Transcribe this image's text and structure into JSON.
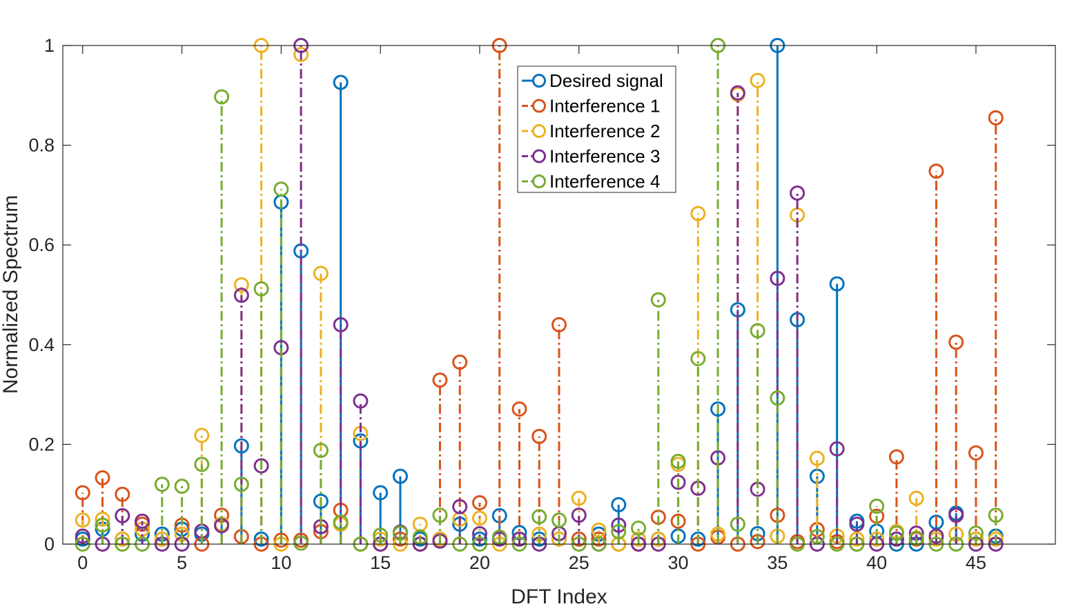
{
  "chart_data": {
    "type": "stem",
    "title": "",
    "xlabel": "DFT Index",
    "ylabel": "Normalized Spectrum",
    "xlim": [
      -1,
      49
    ],
    "ylim": [
      0,
      1
    ],
    "xticks": [
      0,
      5,
      10,
      15,
      20,
      25,
      30,
      35,
      40,
      45
    ],
    "yticks": [
      0,
      0.2,
      0.4,
      0.6,
      0.8,
      1
    ],
    "ytick_labels": [
      "0",
      "0.2",
      "0.4",
      "0.6",
      "0.8",
      "1"
    ],
    "legend_position": "top-center",
    "x": [
      0,
      1,
      2,
      3,
      4,
      5,
      6,
      7,
      8,
      9,
      10,
      11,
      12,
      13,
      14,
      15,
      16,
      17,
      18,
      19,
      20,
      21,
      22,
      23,
      24,
      25,
      26,
      27,
      28,
      29,
      30,
      31,
      32,
      33,
      34,
      35,
      36,
      37,
      38,
      39,
      40,
      41,
      42,
      43,
      44,
      45,
      46
    ],
    "series": [
      {
        "name": "Desired signal",
        "color": "#0072BD",
        "line_style": "solid",
        "values": [
          0.01,
          0.03,
          0.01,
          0.02,
          0.02,
          0.03,
          0.02,
          0.04,
          0.197,
          0.01,
          0.686,
          0.588,
          0.086,
          0.926,
          0.207,
          0.103,
          0.136,
          0.01,
          0.01,
          0.04,
          0.01,
          0.057,
          0.023,
          0.01,
          0.01,
          0.01,
          0.02,
          0.079,
          0.01,
          0.01,
          0.016,
          0.01,
          0.271,
          0.47,
          0.021,
          1.0,
          0.45,
          0.136,
          0.522,
          0.046,
          0.026,
          0.0,
          0.0,
          0.044,
          0.062,
          0.01,
          0.016
        ]
      },
      {
        "name": "Interference 1",
        "color": "#D95319",
        "line_style": "dashdot",
        "values": [
          0.103,
          0.133,
          0.1,
          0.04,
          0.01,
          0.038,
          0.0,
          0.058,
          0.015,
          0.0,
          0.008,
          0.008,
          0.025,
          0.068,
          0.0,
          0.0,
          0.01,
          0.0,
          0.329,
          0.365,
          0.083,
          1.0,
          0.271,
          0.216,
          0.44,
          0.01,
          0.01,
          0.0,
          0.0,
          0.054,
          0.046,
          0.0,
          0.014,
          0.0,
          0.005,
          0.058,
          0.005,
          0.029,
          0.005,
          0.0,
          0.056,
          0.175,
          0.01,
          0.748,
          0.405,
          0.183,
          0.855
        ]
      },
      {
        "name": "Interference 2",
        "color": "#EDB120",
        "line_style": "dashdot",
        "values": [
          0.048,
          0.05,
          0.01,
          0.03,
          0.01,
          0.02,
          0.218,
          0.04,
          0.52,
          1.0,
          0.0,
          0.982,
          0.543,
          0.04,
          0.222,
          0.01,
          0.0,
          0.04,
          0.01,
          0.05,
          0.052,
          0.0,
          0.01,
          0.02,
          0.01,
          0.092,
          0.028,
          0.0,
          0.01,
          0.01,
          0.16,
          0.663,
          0.02,
          0.902,
          0.93,
          0.016,
          0.66,
          0.172,
          0.016,
          0.01,
          0.01,
          0.025,
          0.092,
          0.01,
          0.02,
          0.01,
          0.01
        ]
      },
      {
        "name": "Interference 3",
        "color": "#7E2F8E",
        "line_style": "dashdot",
        "values": [
          0.016,
          0.0,
          0.057,
          0.046,
          0.0,
          0.0,
          0.026,
          0.037,
          0.499,
          0.157,
          0.394,
          1.0,
          0.035,
          0.44,
          0.287,
          0.0,
          0.024,
          0.0,
          0.006,
          0.075,
          0.021,
          0.01,
          0.01,
          0.0,
          0.021,
          0.058,
          0.0,
          0.038,
          0.0,
          0.0,
          0.124,
          0.112,
          0.173,
          0.905,
          0.11,
          0.533,
          0.704,
          0.0,
          0.191,
          0.04,
          0.0,
          0.01,
          0.022,
          0.016,
          0.058,
          0.0,
          0.0
        ]
      },
      {
        "name": "Interference 4",
        "color": "#77AC30",
        "line_style": "dashdot",
        "values": [
          0.0,
          0.038,
          0.0,
          0.0,
          0.12,
          0.116,
          0.16,
          0.897,
          0.12,
          0.512,
          0.712,
          0.002,
          0.188,
          0.044,
          0.0,
          0.018,
          0.022,
          0.014,
          0.058,
          0.0,
          0.0,
          0.014,
          0.0,
          0.055,
          0.048,
          0.0,
          0.0,
          0.025,
          0.032,
          0.49,
          0.166,
          0.372,
          1.0,
          0.04,
          0.428,
          0.293,
          0.0,
          0.015,
          0.0,
          0.0,
          0.076,
          0.022,
          0.012,
          0.0,
          0.0,
          0.022,
          0.058
        ]
      }
    ]
  }
}
